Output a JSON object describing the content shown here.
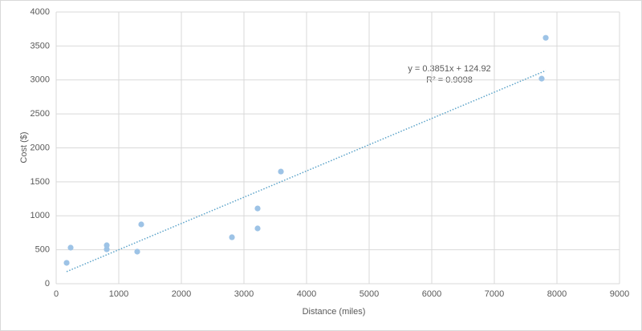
{
  "chart_data": {
    "type": "scatter",
    "x_label": "Distance (miles)",
    "y_label": "Cost ($)",
    "trendline_equation": "y = 0.3851x + 124.92",
    "trendline_r2": "R² = 0.9098",
    "color": "#9dc3e6",
    "trendline_color": "#5ba3c9",
    "x": [
      167,
      231,
      808,
      808,
      1295,
      1359,
      2808,
      3218,
      3218,
      3590,
      7756,
      7821
    ],
    "values": [
      307,
      531,
      566,
      507,
      472,
      873,
      684,
      1108,
      814,
      1651,
      3019,
      3620
    ],
    "xlim": [
      0,
      9000
    ],
    "xticks": [
      0,
      1000,
      2000,
      3000,
      4000,
      5000,
      6000,
      7000,
      8000,
      9000
    ],
    "ylim": [
      0,
      4000
    ],
    "yticks": [
      0,
      500,
      1000,
      1500,
      2000,
      2500,
      3000,
      3500,
      4000
    ],
    "grid": true
  }
}
